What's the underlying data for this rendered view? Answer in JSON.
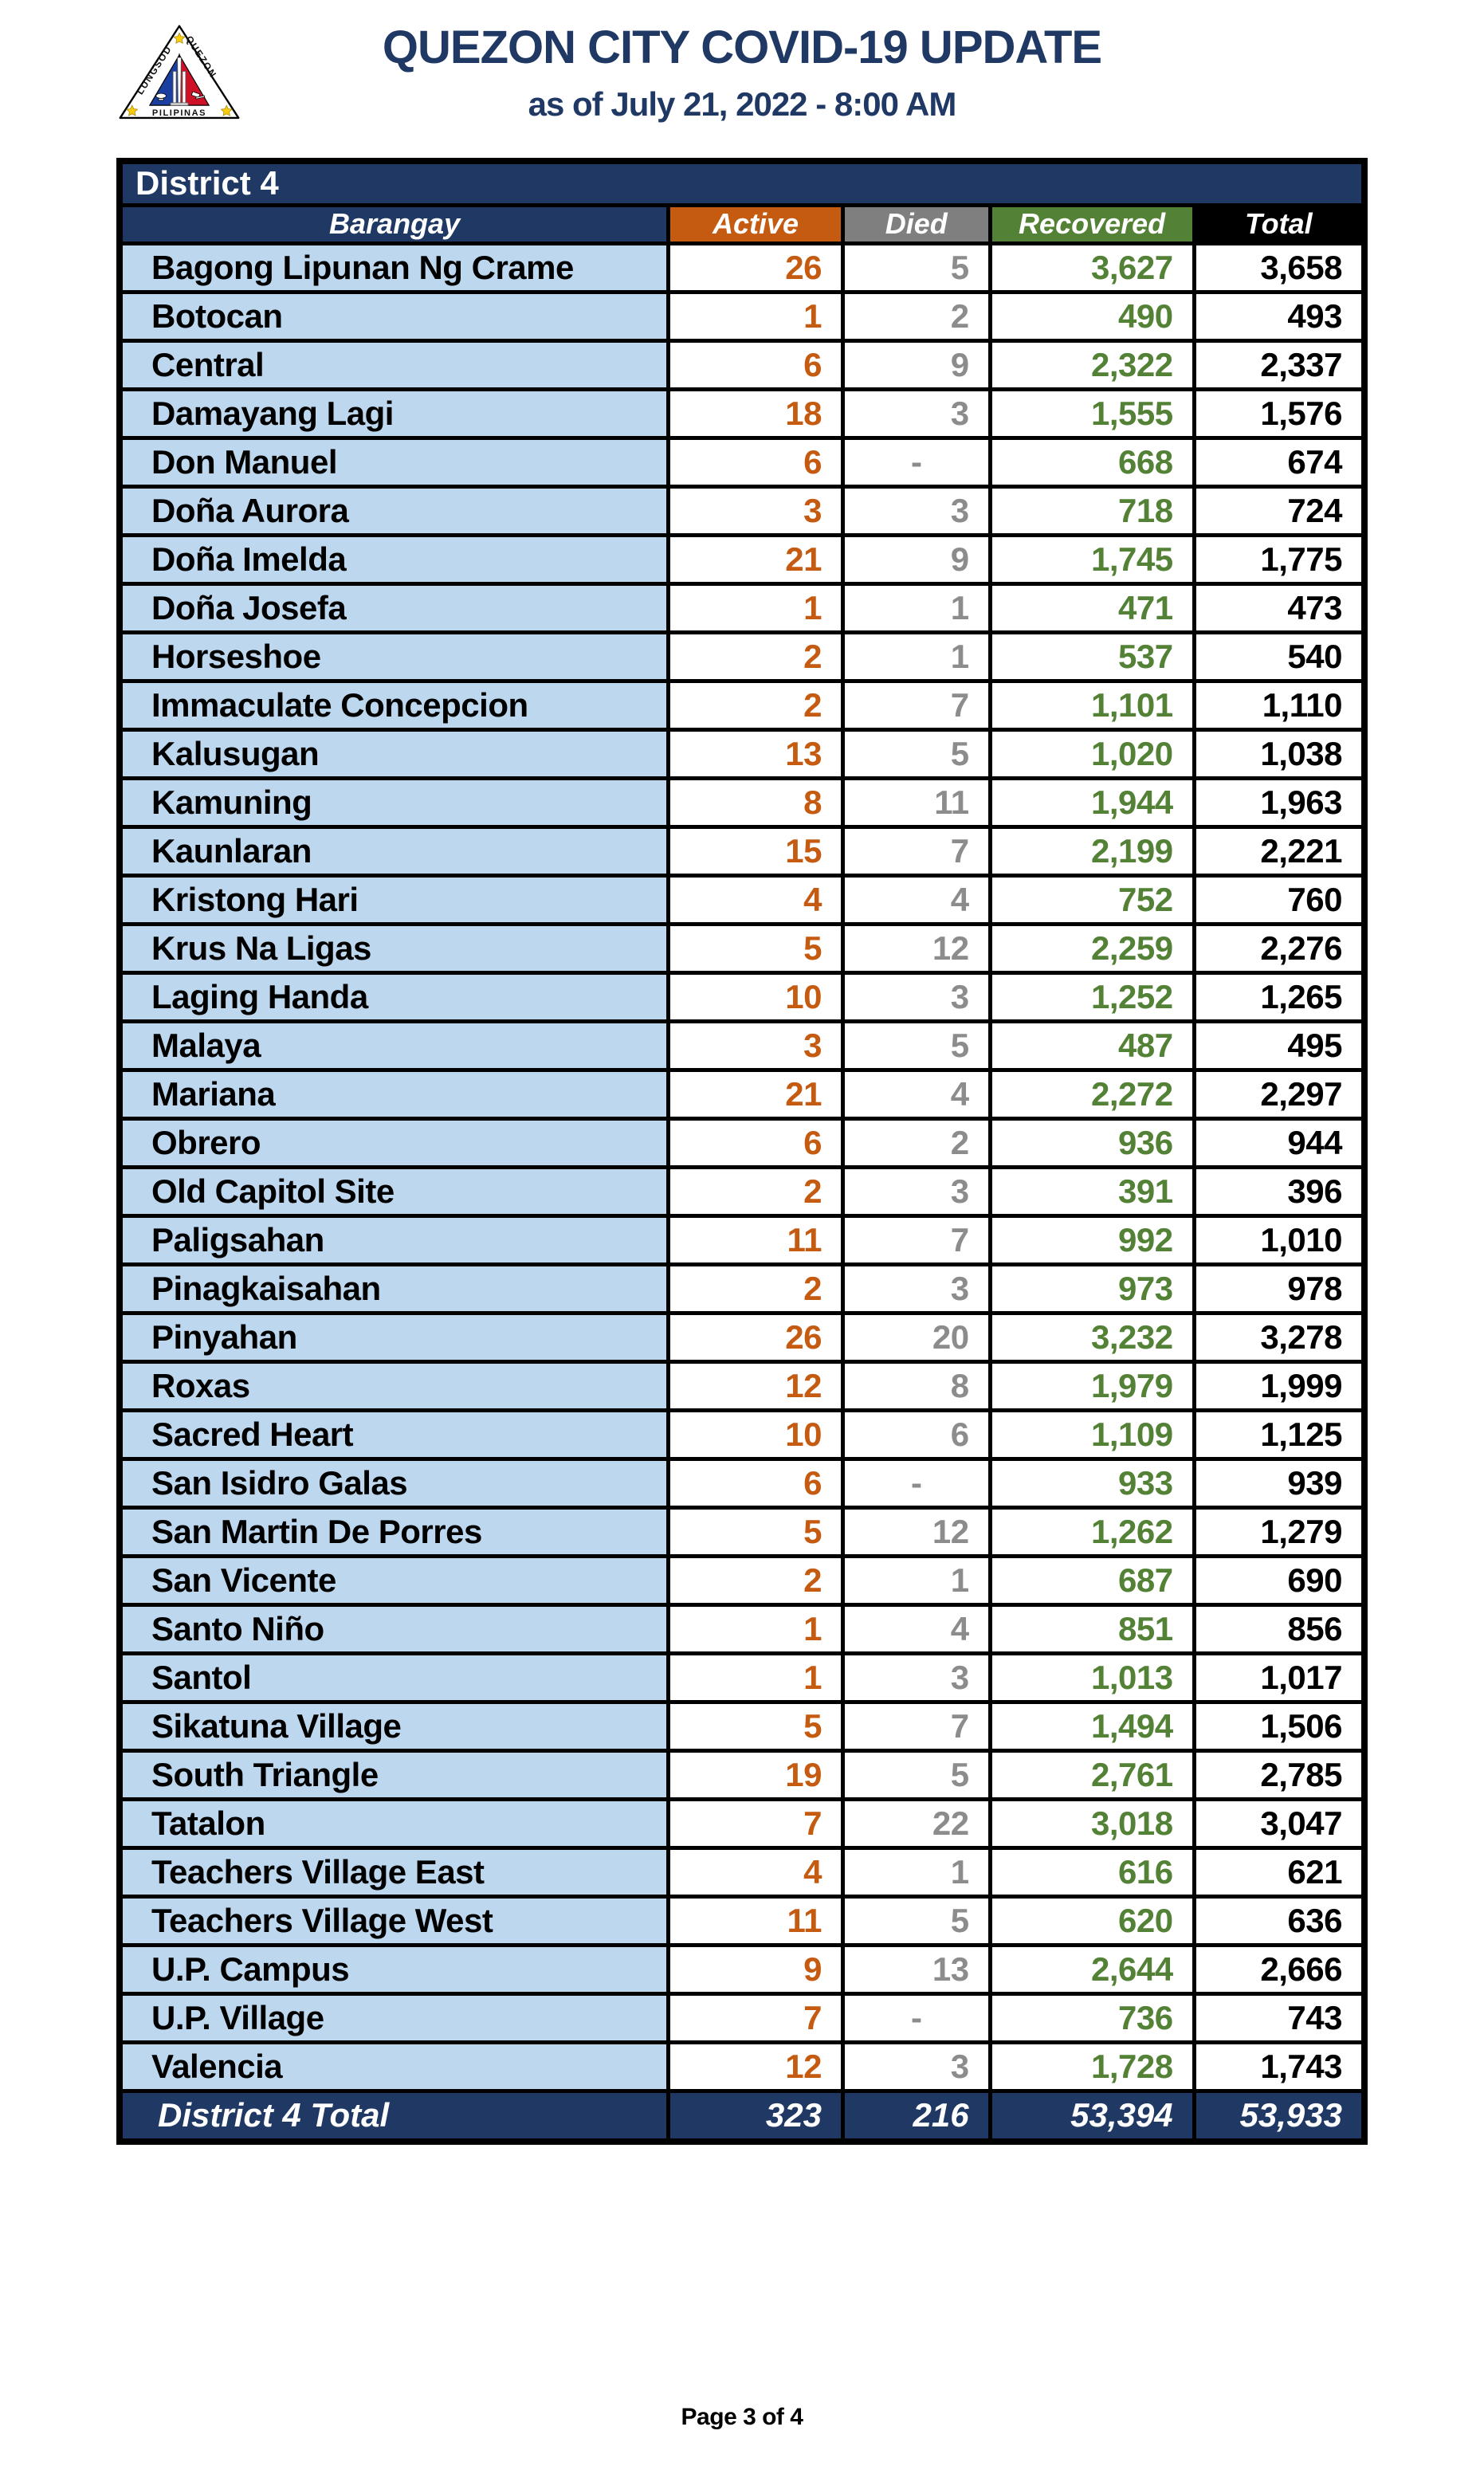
{
  "header": {
    "title": "QUEZON CITY COVID-19 UPDATE",
    "subtitle": "as of July 21, 2022 - 8:00 AM",
    "logo": {
      "text_left": "LUNGSOD",
      "text_right": "QUEZON",
      "text_bottom": "PILIPINAS"
    }
  },
  "colors": {
    "navy": "#1F3864",
    "orange": "#C55A11",
    "gray": "#7F7F7F",
    "green": "#538135",
    "black": "#000000",
    "light_blue": "#BDD7EE",
    "seal_blue": "#1B3FA0",
    "seal_red": "#CE1126",
    "seal_star_yellow": "#F8CC0C"
  },
  "table": {
    "district_label": "District 4",
    "columns": [
      "Barangay",
      "Active",
      "Died",
      "Recovered",
      "Total"
    ],
    "rows": [
      {
        "name": "Bagong Lipunan Ng Crame",
        "active": "26",
        "died": "5",
        "recovered": "3,627",
        "total": "3,658"
      },
      {
        "name": "Botocan",
        "active": "1",
        "died": "2",
        "recovered": "490",
        "total": "493"
      },
      {
        "name": "Central",
        "active": "6",
        "died": "9",
        "recovered": "2,322",
        "total": "2,337"
      },
      {
        "name": "Damayang Lagi",
        "active": "18",
        "died": "3",
        "recovered": "1,555",
        "total": "1,576"
      },
      {
        "name": "Don Manuel",
        "active": "6",
        "died": "-",
        "recovered": "668",
        "total": "674"
      },
      {
        "name": "Doña Aurora",
        "active": "3",
        "died": "3",
        "recovered": "718",
        "total": "724"
      },
      {
        "name": "Doña Imelda",
        "active": "21",
        "died": "9",
        "recovered": "1,745",
        "total": "1,775"
      },
      {
        "name": "Doña Josefa",
        "active": "1",
        "died": "1",
        "recovered": "471",
        "total": "473"
      },
      {
        "name": "Horseshoe",
        "active": "2",
        "died": "1",
        "recovered": "537",
        "total": "540"
      },
      {
        "name": "Immaculate Concepcion",
        "active": "2",
        "died": "7",
        "recovered": "1,101",
        "total": "1,110"
      },
      {
        "name": "Kalusugan",
        "active": "13",
        "died": "5",
        "recovered": "1,020",
        "total": "1,038"
      },
      {
        "name": "Kamuning",
        "active": "8",
        "died": "11",
        "recovered": "1,944",
        "total": "1,963"
      },
      {
        "name": "Kaunlaran",
        "active": "15",
        "died": "7",
        "recovered": "2,199",
        "total": "2,221"
      },
      {
        "name": "Kristong Hari",
        "active": "4",
        "died": "4",
        "recovered": "752",
        "total": "760"
      },
      {
        "name": "Krus Na Ligas",
        "active": "5",
        "died": "12",
        "recovered": "2,259",
        "total": "2,276"
      },
      {
        "name": "Laging Handa",
        "active": "10",
        "died": "3",
        "recovered": "1,252",
        "total": "1,265"
      },
      {
        "name": "Malaya",
        "active": "3",
        "died": "5",
        "recovered": "487",
        "total": "495"
      },
      {
        "name": "Mariana",
        "active": "21",
        "died": "4",
        "recovered": "2,272",
        "total": "2,297"
      },
      {
        "name": "Obrero",
        "active": "6",
        "died": "2",
        "recovered": "936",
        "total": "944"
      },
      {
        "name": "Old Capitol Site",
        "active": "2",
        "died": "3",
        "recovered": "391",
        "total": "396"
      },
      {
        "name": "Paligsahan",
        "active": "11",
        "died": "7",
        "recovered": "992",
        "total": "1,010"
      },
      {
        "name": "Pinagkaisahan",
        "active": "2",
        "died": "3",
        "recovered": "973",
        "total": "978"
      },
      {
        "name": "Pinyahan",
        "active": "26",
        "died": "20",
        "recovered": "3,232",
        "total": "3,278"
      },
      {
        "name": "Roxas",
        "active": "12",
        "died": "8",
        "recovered": "1,979",
        "total": "1,999"
      },
      {
        "name": "Sacred Heart",
        "active": "10",
        "died": "6",
        "recovered": "1,109",
        "total": "1,125"
      },
      {
        "name": "San Isidro Galas",
        "active": "6",
        "died": "-",
        "recovered": "933",
        "total": "939"
      },
      {
        "name": "San Martin De Porres",
        "active": "5",
        "died": "12",
        "recovered": "1,262",
        "total": "1,279"
      },
      {
        "name": "San Vicente",
        "active": "2",
        "died": "1",
        "recovered": "687",
        "total": "690"
      },
      {
        "name": "Santo Niño",
        "active": "1",
        "died": "4",
        "recovered": "851",
        "total": "856"
      },
      {
        "name": "Santol",
        "active": "1",
        "died": "3",
        "recovered": "1,013",
        "total": "1,017"
      },
      {
        "name": "Sikatuna Village",
        "active": "5",
        "died": "7",
        "recovered": "1,494",
        "total": "1,506"
      },
      {
        "name": "South Triangle",
        "active": "19",
        "died": "5",
        "recovered": "2,761",
        "total": "2,785"
      },
      {
        "name": "Tatalon",
        "active": "7",
        "died": "22",
        "recovered": "3,018",
        "total": "3,047"
      },
      {
        "name": "Teachers Village East",
        "active": "4",
        "died": "1",
        "recovered": "616",
        "total": "621"
      },
      {
        "name": "Teachers Village West",
        "active": "11",
        "died": "5",
        "recovered": "620",
        "total": "636"
      },
      {
        "name": "U.P. Campus",
        "active": "9",
        "died": "13",
        "recovered": "2,644",
        "total": "2,666"
      },
      {
        "name": "U.P. Village",
        "active": "7",
        "died": "-",
        "recovered": "736",
        "total": "743"
      },
      {
        "name": "Valencia",
        "active": "12",
        "died": "3",
        "recovered": "1,728",
        "total": "1,743"
      }
    ],
    "total_row": {
      "label": "District 4 Total",
      "active": "323",
      "died": "216",
      "recovered": "53,394",
      "total": "53,933"
    }
  },
  "footer": {
    "page_label": "Page 3 of 4"
  }
}
